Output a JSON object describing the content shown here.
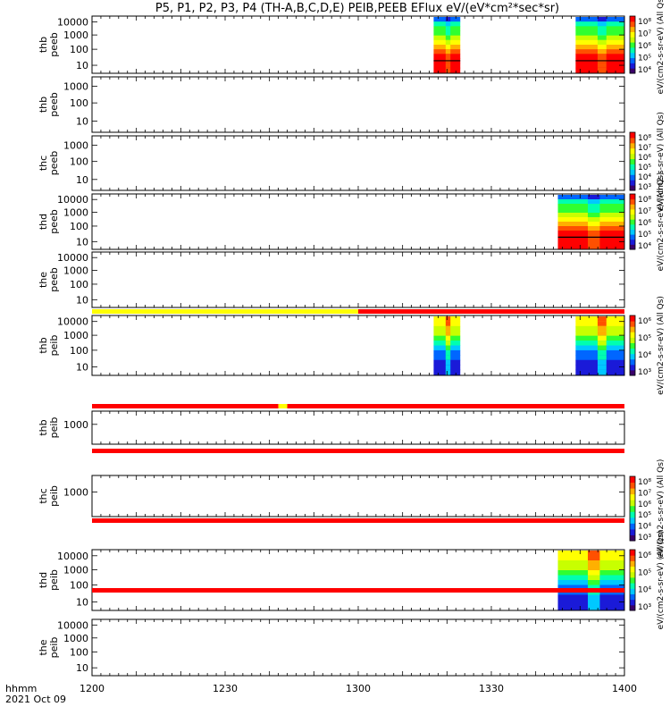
{
  "chart_data": {
    "type": "heatmap",
    "title": "P5, P1, P2, P3, P4 (TH-A,B,C,D,E) PEIB,PEEB EFlux eV/(eV*cm²*sec*sr)",
    "x_axis": {
      "label_line1": "hhmm",
      "label_line2": "2021 Oct 09",
      "range_minutes": [
        0,
        120
      ],
      "ticks": [
        {
          "label": "1200",
          "minutes": 0
        },
        {
          "label": "1230",
          "minutes": 30
        },
        {
          "label": "1300",
          "minutes": 60
        },
        {
          "label": "1330",
          "minutes": 90
        },
        {
          "label": "1400",
          "minutes": 120
        }
      ]
    },
    "panels": [
      {
        "probe": "thb",
        "product": "peeb",
        "yticks": [
          "10000",
          "1000",
          "100",
          "10"
        ],
        "data_windows_minutes": [
          [
            77,
            83
          ],
          [
            109,
            120
          ]
        ]
      },
      {
        "probe": "thb",
        "product": "peeb",
        "yticks": [
          "1000",
          "100",
          "10"
        ],
        "data_windows_minutes": []
      },
      {
        "probe": "thc",
        "product": "peeb",
        "yticks": [
          "1000",
          "100",
          "10"
        ],
        "data_windows_minutes": []
      },
      {
        "probe": "thd",
        "product": "peeb",
        "yticks": [
          "10000",
          "1000",
          "100",
          "10"
        ],
        "data_windows_minutes": [
          [
            105,
            120
          ]
        ]
      },
      {
        "probe": "the",
        "product": "peeb",
        "yticks": [
          "10000",
          "1000",
          "100",
          "10"
        ],
        "data_windows_minutes": []
      },
      {
        "probe": "thb",
        "product": "peib",
        "yticks": [
          "10000",
          "1000",
          "100",
          "10"
        ],
        "data_windows_minutes": [
          [
            77,
            83
          ],
          [
            109,
            120
          ]
        ]
      },
      {
        "probe": "thb",
        "product": "peib",
        "yticks": [
          "1000"
        ],
        "data_windows_minutes": []
      },
      {
        "probe": "thc",
        "product": "peib",
        "yticks": [
          "1000"
        ],
        "data_windows_minutes": []
      },
      {
        "probe": "thd",
        "product": "peib",
        "yticks": [
          "10000",
          "1000",
          "100",
          "10"
        ],
        "data_windows_minutes": [
          [
            105,
            120
          ]
        ]
      },
      {
        "probe": "the",
        "product": "peib",
        "yticks": [
          "10000",
          "1000",
          "100",
          "10"
        ],
        "data_windows_minutes": []
      }
    ],
    "flag_bars": [
      {
        "segments": [
          {
            "from": 0,
            "to": 60,
            "color": "#ffff00"
          },
          {
            "from": 60,
            "to": 120,
            "color": "#ff0000"
          }
        ]
      },
      {
        "segments": [
          {
            "from": 0,
            "to": 42,
            "color": "#ff0000"
          },
          {
            "from": 42,
            "to": 44,
            "color": "#ffff00"
          },
          {
            "from": 44,
            "to": 120,
            "color": "#ff0000"
          }
        ]
      },
      {
        "segments": [
          {
            "from": 0,
            "to": 120,
            "color": "#ff0000"
          }
        ]
      },
      {
        "segments": [
          {
            "from": 0,
            "to": 120,
            "color": "#ff0000"
          }
        ]
      },
      {
        "segments": [
          {
            "from": 0,
            "to": 120,
            "color": "#ff0000"
          }
        ]
      }
    ],
    "colorbars": [
      {
        "ticks": [
          "10⁸",
          "10⁷",
          "10⁶",
          "10⁵",
          "10⁴"
        ],
        "label": "eV/(cm2-s-sr-eV) (All Qs)"
      },
      {
        "ticks": [
          "10⁸",
          "10⁷",
          "10⁶",
          "10⁵",
          "10⁴",
          "10³"
        ],
        "label": "eV/(cm2-s-sr-eV) (All Qs)"
      },
      {
        "ticks": [
          "10⁸",
          "10⁷",
          "10⁶",
          "10⁵",
          "10⁴"
        ],
        "label": "eV/(cm2-s-sr-eV) (All Qs)"
      },
      {
        "ticks": [
          "10⁶",
          "10⁵",
          "10⁴",
          "10³"
        ],
        "label": "eV/(cm2-s-sr-eV) (All Qs)"
      },
      {
        "ticks": [
          "10⁸",
          "10⁷",
          "10⁶",
          "10⁵",
          "10⁴",
          "10³"
        ],
        "label": "eV/(cm2-s-sr-eV) (All Qs)"
      },
      {
        "ticks": [
          "10⁶",
          "10⁵",
          "10⁴",
          "10³"
        ],
        "label": "eV/(cm2-s-sr-eV) (All Qs)"
      }
    ],
    "colormap": [
      "#3a0069",
      "#1a1ad8",
      "#0066ff",
      "#00c8ff",
      "#00ffb0",
      "#30ff30",
      "#c8ff00",
      "#ffff00",
      "#ffb000",
      "#ff5000",
      "#ff0000"
    ]
  }
}
